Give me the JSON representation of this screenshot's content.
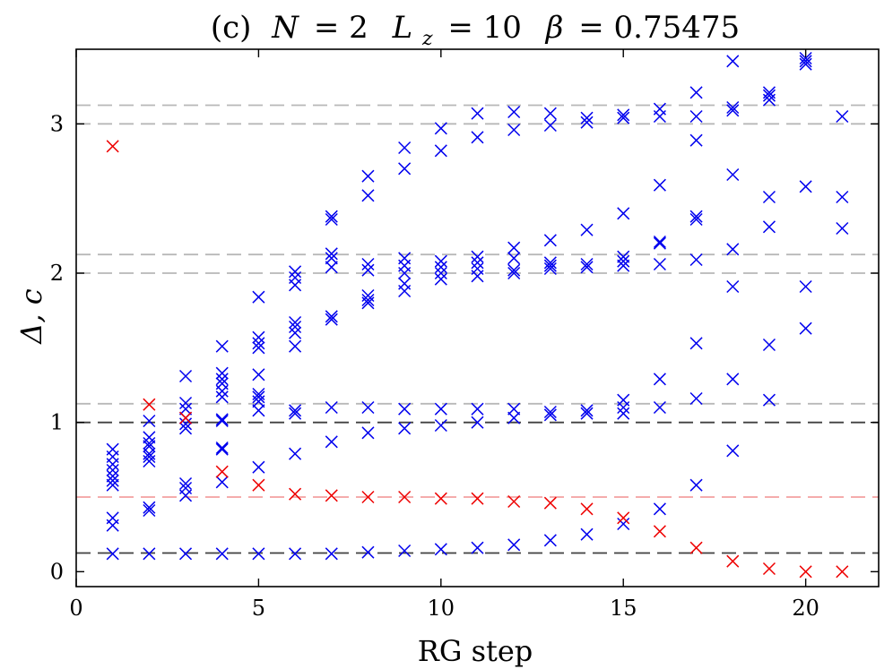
{
  "chart_data": {
    "type": "scatter",
    "title": {
      "prefix": "(c)",
      "n_symbol": "N",
      "n_value": "= 2",
      "l_symbol": "L",
      "l_subscript": "z",
      "l_value": "= 10",
      "beta_symbol": "β",
      "beta_value": "= 0.75475"
    },
    "xlabel": "RG step",
    "ylabel": "Δ, c",
    "xlim": [
      0,
      22
    ],
    "ylim": [
      -0.1,
      3.5
    ],
    "xticks": [
      0,
      5,
      10,
      15,
      20
    ],
    "yticks": [
      0,
      1,
      2,
      3
    ],
    "grid": false,
    "colors": {
      "blue_series": "#0000ee",
      "red_series": "#ee0000",
      "ref_dark": "#404040",
      "ref_gray": "#b8b8b8",
      "ref_red": "#f4a0a0"
    },
    "reference_lines": [
      {
        "y": 0.125,
        "style": "dark"
      },
      {
        "y": 1.0,
        "style": "dark"
      },
      {
        "y": 1.125,
        "style": "gray"
      },
      {
        "y": 2.0,
        "style": "gray"
      },
      {
        "y": 2.125,
        "style": "gray"
      },
      {
        "y": 3.0,
        "style": "gray"
      },
      {
        "y": 3.125,
        "style": "gray"
      },
      {
        "y": 0.5,
        "style": "red"
      }
    ],
    "series": [
      {
        "name": "red",
        "color_key": "red_series",
        "points": [
          [
            1,
            2.85
          ],
          [
            2,
            1.12
          ],
          [
            3,
            1.03
          ],
          [
            4,
            0.67
          ],
          [
            5,
            0.58
          ],
          [
            6,
            0.52
          ],
          [
            7,
            0.51
          ],
          [
            8,
            0.5
          ],
          [
            9,
            0.5
          ],
          [
            10,
            0.49
          ],
          [
            11,
            0.49
          ],
          [
            12,
            0.47
          ],
          [
            13,
            0.46
          ],
          [
            14,
            0.42
          ],
          [
            15,
            0.36
          ],
          [
            16,
            0.27
          ],
          [
            17,
            0.16
          ],
          [
            18,
            0.07
          ],
          [
            19,
            0.02
          ],
          [
            20,
            0.0
          ],
          [
            21,
            0.0
          ]
        ]
      },
      {
        "name": "blue",
        "color_key": "blue_series",
        "points": [
          [
            1,
            0.12
          ],
          [
            1,
            0.31
          ],
          [
            1,
            0.36
          ],
          [
            1,
            0.58
          ],
          [
            1,
            0.61
          ],
          [
            1,
            0.64
          ],
          [
            1,
            0.68
          ],
          [
            1,
            0.72
          ],
          [
            1,
            0.77
          ],
          [
            1,
            0.82
          ],
          [
            2,
            0.12
          ],
          [
            2,
            0.41
          ],
          [
            2,
            0.43
          ],
          [
            2,
            0.74
          ],
          [
            2,
            0.77
          ],
          [
            2,
            0.79
          ],
          [
            2,
            0.84
          ],
          [
            2,
            0.86
          ],
          [
            2,
            0.9
          ],
          [
            2,
            1.01
          ],
          [
            3,
            0.12
          ],
          [
            3,
            0.51
          ],
          [
            3,
            0.56
          ],
          [
            3,
            0.59
          ],
          [
            3,
            0.96
          ],
          [
            3,
            0.99
          ],
          [
            3,
            1.03
          ],
          [
            3,
            1.09
          ],
          [
            3,
            1.13
          ],
          [
            3,
            1.31
          ],
          [
            4,
            0.12
          ],
          [
            4,
            0.6
          ],
          [
            4,
            0.82
          ],
          [
            4,
            0.83
          ],
          [
            4,
            1.01
          ],
          [
            4,
            1.02
          ],
          [
            4,
            1.17
          ],
          [
            4,
            1.21
          ],
          [
            4,
            1.26
          ],
          [
            4,
            1.29
          ],
          [
            4,
            1.33
          ],
          [
            4,
            1.51
          ],
          [
            5,
            0.12
          ],
          [
            5,
            0.7
          ],
          [
            5,
            1.08
          ],
          [
            5,
            1.14
          ],
          [
            5,
            1.17
          ],
          [
            5,
            1.19
          ],
          [
            5,
            1.32
          ],
          [
            5,
            1.5
          ],
          [
            5,
            1.53
          ],
          [
            5,
            1.57
          ],
          [
            5,
            1.84
          ],
          [
            6,
            0.12
          ],
          [
            6,
            0.79
          ],
          [
            6,
            1.06
          ],
          [
            6,
            1.08
          ],
          [
            6,
            1.51
          ],
          [
            6,
            1.6
          ],
          [
            6,
            1.64
          ],
          [
            6,
            1.67
          ],
          [
            6,
            1.92
          ],
          [
            6,
            1.97
          ],
          [
            6,
            2.01
          ],
          [
            7,
            0.12
          ],
          [
            7,
            0.87
          ],
          [
            7,
            1.1
          ],
          [
            7,
            1.69
          ],
          [
            7,
            1.71
          ],
          [
            7,
            2.04
          ],
          [
            7,
            2.1
          ],
          [
            7,
            2.13
          ],
          [
            7,
            2.36
          ],
          [
            7,
            2.38
          ],
          [
            8,
            0.13
          ],
          [
            8,
            0.93
          ],
          [
            8,
            1.1
          ],
          [
            8,
            1.8
          ],
          [
            8,
            1.82
          ],
          [
            8,
            1.85
          ],
          [
            8,
            2.02
          ],
          [
            8,
            2.06
          ],
          [
            8,
            2.52
          ],
          [
            8,
            2.65
          ],
          [
            9,
            0.14
          ],
          [
            9,
            0.96
          ],
          [
            9,
            1.09
          ],
          [
            9,
            1.88
          ],
          [
            9,
            1.93
          ],
          [
            9,
            2.0
          ],
          [
            9,
            2.05
          ],
          [
            9,
            2.1
          ],
          [
            9,
            2.7
          ],
          [
            9,
            2.84
          ],
          [
            10,
            0.15
          ],
          [
            10,
            0.98
          ],
          [
            10,
            1.09
          ],
          [
            10,
            1.96
          ],
          [
            10,
            2.0
          ],
          [
            10,
            2.04
          ],
          [
            10,
            2.08
          ],
          [
            10,
            2.82
          ],
          [
            10,
            2.97
          ],
          [
            11,
            0.16
          ],
          [
            11,
            1.0
          ],
          [
            11,
            1.09
          ],
          [
            11,
            1.98
          ],
          [
            11,
            2.03
          ],
          [
            11,
            2.07
          ],
          [
            11,
            2.11
          ],
          [
            11,
            2.91
          ],
          [
            11,
            3.07
          ],
          [
            12,
            0.18
          ],
          [
            12,
            1.03
          ],
          [
            12,
            1.09
          ],
          [
            12,
            2.0
          ],
          [
            12,
            2.02
          ],
          [
            12,
            2.1
          ],
          [
            12,
            2.17
          ],
          [
            12,
            2.96
          ],
          [
            12,
            3.08
          ],
          [
            13,
            0.21
          ],
          [
            13,
            1.05
          ],
          [
            13,
            1.07
          ],
          [
            13,
            2.03
          ],
          [
            13,
            2.05
          ],
          [
            13,
            2.07
          ],
          [
            13,
            2.22
          ],
          [
            13,
            2.99
          ],
          [
            13,
            3.07
          ],
          [
            14,
            0.25
          ],
          [
            14,
            1.06
          ],
          [
            14,
            1.08
          ],
          [
            14,
            2.04
          ],
          [
            14,
            2.06
          ],
          [
            14,
            2.29
          ],
          [
            14,
            3.01
          ],
          [
            14,
            3.04
          ],
          [
            15,
            0.32
          ],
          [
            15,
            1.06
          ],
          [
            15,
            1.1
          ],
          [
            15,
            1.15
          ],
          [
            15,
            2.05
          ],
          [
            15,
            2.08
          ],
          [
            15,
            2.11
          ],
          [
            15,
            2.4
          ],
          [
            15,
            3.04
          ],
          [
            15,
            3.06
          ],
          [
            16,
            0.42
          ],
          [
            16,
            1.1
          ],
          [
            16,
            1.29
          ],
          [
            16,
            2.06
          ],
          [
            16,
            2.2
          ],
          [
            16,
            2.21
          ],
          [
            16,
            2.59
          ],
          [
            16,
            3.05
          ],
          [
            16,
            3.1
          ],
          [
            17,
            0.58
          ],
          [
            17,
            1.16
          ],
          [
            17,
            1.53
          ],
          [
            17,
            2.09
          ],
          [
            17,
            2.36
          ],
          [
            17,
            2.38
          ],
          [
            17,
            2.89
          ],
          [
            17,
            3.05
          ],
          [
            17,
            3.21
          ],
          [
            18,
            0.81
          ],
          [
            18,
            1.29
          ],
          [
            18,
            1.91
          ],
          [
            18,
            2.16
          ],
          [
            18,
            2.66
          ],
          [
            18,
            3.09
          ],
          [
            18,
            3.11
          ],
          [
            18,
            3.42
          ],
          [
            19,
            1.15
          ],
          [
            19,
            1.52
          ],
          [
            19,
            2.31
          ],
          [
            19,
            2.51
          ],
          [
            19,
            3.16
          ],
          [
            19,
            3.19
          ],
          [
            19,
            3.21
          ],
          [
            20,
            1.63
          ],
          [
            20,
            1.91
          ],
          [
            20,
            2.58
          ],
          [
            20,
            3.4
          ],
          [
            20,
            3.42
          ],
          [
            20,
            3.44
          ],
          [
            21,
            2.3
          ],
          [
            21,
            2.51
          ],
          [
            21,
            3.05
          ]
        ]
      }
    ]
  }
}
